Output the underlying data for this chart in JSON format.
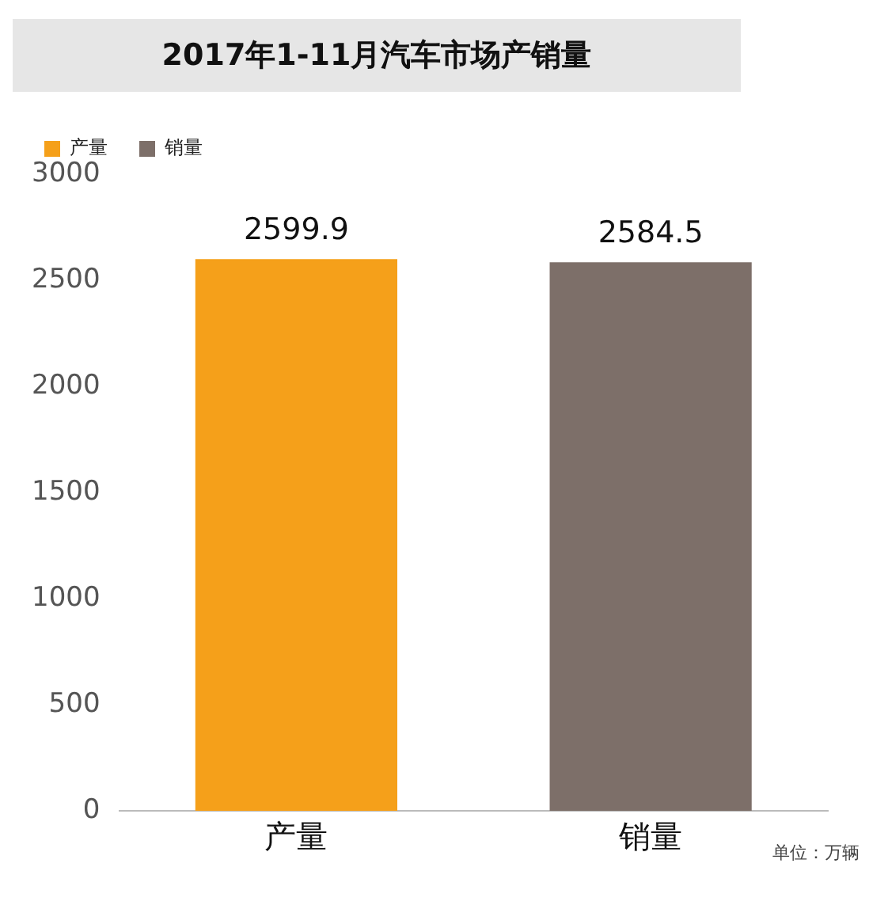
{
  "chart_data": {
    "type": "bar",
    "title": "2017年1-11月汽车市场产销量",
    "categories": [
      "产量",
      "销量"
    ],
    "series": [
      {
        "name": "产量",
        "color": "#f5a01a",
        "values": [
          2599.9,
          null
        ]
      },
      {
        "name": "销量",
        "color": "#7d6f69",
        "values": [
          null,
          2584.5
        ]
      }
    ],
    "ylim": [
      0,
      3000
    ],
    "yticks": [
      0,
      500,
      1000,
      1500,
      2000,
      2500,
      3000
    ],
    "grid": false,
    "legend": "top left",
    "data_labels": true,
    "annotations": [
      "单位：万辆"
    ]
  }
}
